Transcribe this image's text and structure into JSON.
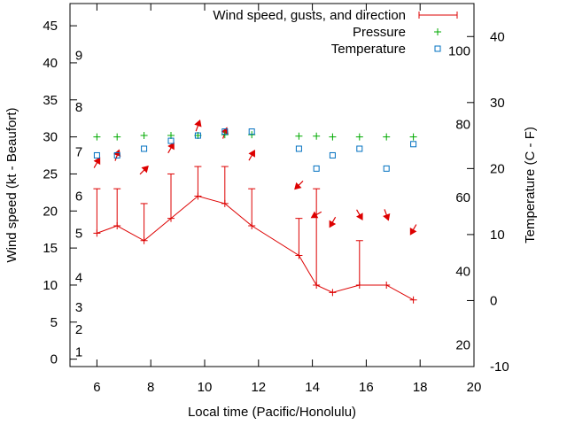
{
  "chart_data": {
    "type": "line",
    "xlabel": "Local time (Pacific/Honolulu)",
    "ylabel_left": "Wind speed (kt - Beaufort)",
    "ylabel_right": "Temperature (C - F)",
    "xlim": [
      5,
      20
    ],
    "ylim_left": [
      -1,
      48
    ],
    "ylim_right": [
      -10,
      45
    ],
    "x_ticks": [
      6,
      8,
      10,
      12,
      14,
      16,
      18,
      20
    ],
    "y_left_ticks": [
      0,
      5,
      10,
      15,
      20,
      25,
      30,
      35,
      40,
      45
    ],
    "y_right_ticks": [
      -10,
      0,
      10,
      20,
      30,
      40
    ],
    "beaufort_labels": [
      {
        "label": "1",
        "kt": 1.0
      },
      {
        "label": "2",
        "kt": 4.0
      },
      {
        "label": "3",
        "kt": 7.0
      },
      {
        "label": "4",
        "kt": 11.0
      },
      {
        "label": "5",
        "kt": 17.0
      },
      {
        "label": "6",
        "kt": 22.0
      },
      {
        "label": "7",
        "kt": 28.0
      },
      {
        "label": "8",
        "kt": 34.0
      },
      {
        "label": "9",
        "kt": 41.0
      }
    ],
    "fahrenheit_labels": [
      {
        "label": "20",
        "c": -6.7
      },
      {
        "label": "40",
        "c": 4.4
      },
      {
        "label": "60",
        "c": 15.6
      },
      {
        "label": "80",
        "c": 26.7
      },
      {
        "label": "100",
        "c": 37.8
      }
    ],
    "legend": {
      "placement": "top-right",
      "entries": [
        "Wind speed, gusts, and direction",
        "Pressure",
        "Temperature"
      ]
    },
    "colors": {
      "wind": "#dd0000",
      "pressure": "#00aa00",
      "temperature": "#0070c0"
    },
    "series": [
      {
        "name": "Wind speed, gusts, and direction",
        "x": [
          6.0,
          6.75,
          7.75,
          8.75,
          9.75,
          10.75,
          11.75,
          13.5,
          14.15,
          14.75,
          15.75,
          16.75,
          17.75
        ],
        "speed": [
          17,
          18,
          16,
          19,
          22,
          21,
          18,
          14,
          10,
          9,
          10,
          10,
          8
        ],
        "gust": [
          23,
          23,
          21,
          25,
          26,
          26,
          23,
          19,
          23,
          9,
          16,
          10,
          8
        ],
        "direction_deg": [
          30,
          20,
          45,
          30,
          20,
          20,
          30,
          225,
          240,
          210,
          150,
          160,
          210
        ]
      },
      {
        "name": "Pressure",
        "x": [
          6.0,
          6.75,
          7.75,
          8.75,
          9.75,
          10.75,
          11.75,
          13.5,
          14.15,
          14.75,
          15.75,
          16.75,
          17.75
        ],
        "y": [
          30.0,
          30.0,
          30.2,
          30.2,
          30.2,
          30.3,
          30.3,
          30.1,
          30.1,
          30.0,
          30.0,
          30.0,
          30.0
        ]
      },
      {
        "name": "Temperature",
        "x": [
          6.0,
          6.75,
          7.75,
          8.75,
          9.75,
          10.75,
          11.75,
          13.5,
          14.15,
          14.75,
          15.75,
          16.75,
          17.75
        ],
        "y": [
          22.0,
          22.0,
          23.0,
          24.2,
          25.0,
          25.6,
          25.6,
          23.0,
          20.0,
          22.0,
          23.0,
          20.0,
          23.7
        ]
      }
    ]
  }
}
